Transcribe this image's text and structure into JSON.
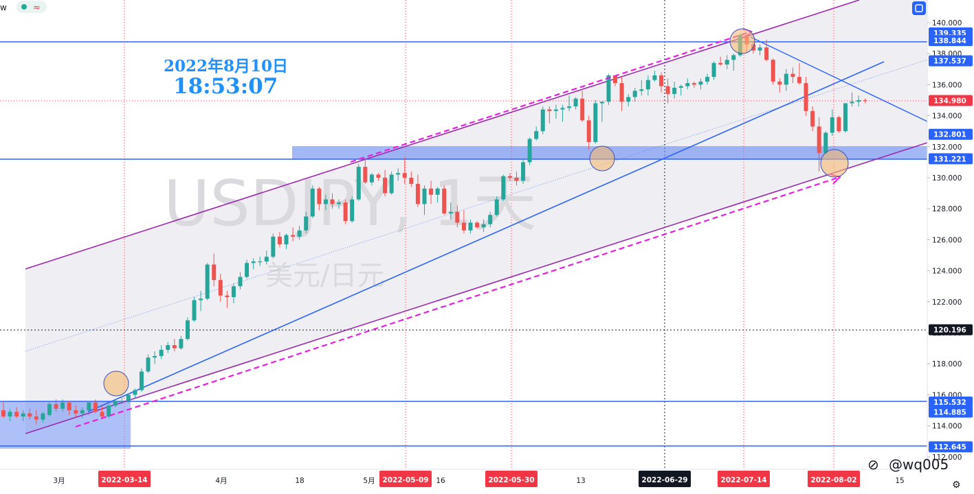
{
  "header": {
    "symbol_fragment": "w",
    "status_icon": "green-dot-icon",
    "indicator_icon": "wave-icon",
    "right_icon": "layout-icon"
  },
  "overlay": {
    "date": "2022年8月10日",
    "time": "18:53:07",
    "watermark_symbol": "USDJPY, 1天",
    "watermark_desc": "美元/日元",
    "weibo_handle": "@wq005"
  },
  "price_axis": {
    "ticks": [
      "140.000",
      "138.000",
      "136.000",
      "134.000",
      "132.000",
      "130.000",
      "128.000",
      "126.000",
      "124.000",
      "122.000",
      "120.000",
      "118.000",
      "116.000",
      "114.000",
      "112.000"
    ],
    "tagged_levels": [
      {
        "value": "139.335",
        "color": "#2962ff"
      },
      {
        "value": "138.844",
        "color": "#2962ff"
      },
      {
        "value": "137.537",
        "color": "#2962ff"
      },
      {
        "value": "134.980",
        "color": "#f23645"
      },
      {
        "value": "132.801",
        "color": "#2962ff"
      },
      {
        "value": "131.221",
        "color": "#2962ff"
      },
      {
        "value": "120.196",
        "color": "#131722"
      },
      {
        "value": "115.532",
        "color": "#2962ff"
      },
      {
        "value": "114.885",
        "color": "#2962ff"
      },
      {
        "value": "112.645",
        "color": "#2962ff"
      }
    ]
  },
  "time_axis": {
    "labels": [
      "3月",
      "4月",
      "18",
      "5月",
      "16",
      "13",
      "15"
    ],
    "tagged_dates": [
      {
        "label": "2022-03-14",
        "color": "#f23645"
      },
      {
        "label": "2022-05-09",
        "color": "#f23645"
      },
      {
        "label": "2022-05-30",
        "color": "#f23645"
      },
      {
        "label": "2022-06-29",
        "color": "#131722"
      },
      {
        "label": "2022-07-14",
        "color": "#f23645"
      },
      {
        "label": "2022-08-02",
        "color": "#f23645"
      }
    ]
  },
  "colors": {
    "up": "#26a69a",
    "down": "#ef5350",
    "level_line": "#2962ff",
    "channel": "#9c27b0",
    "projection": "#e91ee0",
    "zone": "#8fa8f5"
  },
  "chart_data": {
    "type": "candlestick",
    "symbol": "USDJPY",
    "ylim": [
      111.6,
      141.0
    ],
    "candles": [
      {
        "o": 115.0,
        "h": 115.6,
        "l": 114.5,
        "c": 114.6
      },
      {
        "o": 114.6,
        "h": 115.1,
        "l": 114.3,
        "c": 114.9
      },
      {
        "o": 114.9,
        "h": 115.2,
        "l": 114.5,
        "c": 114.6
      },
      {
        "o": 114.6,
        "h": 115.0,
        "l": 114.3,
        "c": 114.8
      },
      {
        "o": 114.8,
        "h": 115.1,
        "l": 114.4,
        "c": 114.6
      },
      {
        "o": 114.6,
        "h": 115.0,
        "l": 114.1,
        "c": 114.4
      },
      {
        "o": 114.4,
        "h": 114.9,
        "l": 114.2,
        "c": 114.8
      },
      {
        "o": 114.7,
        "h": 115.6,
        "l": 114.6,
        "c": 115.4
      },
      {
        "o": 115.4,
        "h": 115.7,
        "l": 114.9,
        "c": 115.1
      },
      {
        "o": 115.1,
        "h": 115.7,
        "l": 114.9,
        "c": 115.5
      },
      {
        "o": 115.5,
        "h": 115.6,
        "l": 114.7,
        "c": 115.0
      },
      {
        "o": 115.0,
        "h": 115.3,
        "l": 114.6,
        "c": 114.8
      },
      {
        "o": 114.8,
        "h": 115.2,
        "l": 114.5,
        "c": 115.0
      },
      {
        "o": 115.0,
        "h": 115.6,
        "l": 114.7,
        "c": 115.5
      },
      {
        "o": 115.5,
        "h": 115.7,
        "l": 114.8,
        "c": 114.9
      },
      {
        "o": 114.9,
        "h": 115.3,
        "l": 114.4,
        "c": 114.6
      },
      {
        "o": 114.6,
        "h": 115.4,
        "l": 114.5,
        "c": 115.3
      },
      {
        "o": 115.3,
        "h": 115.7,
        "l": 115.2,
        "c": 115.6
      },
      {
        "o": 115.6,
        "h": 115.8,
        "l": 115.4,
        "c": 115.6
      },
      {
        "o": 115.6,
        "h": 116.1,
        "l": 115.5,
        "c": 116.0
      },
      {
        "o": 116.0,
        "h": 116.4,
        "l": 115.8,
        "c": 116.3
      },
      {
        "o": 116.3,
        "h": 117.7,
        "l": 116.2,
        "c": 117.5
      },
      {
        "o": 117.5,
        "h": 118.6,
        "l": 117.4,
        "c": 118.4
      },
      {
        "o": 118.4,
        "h": 118.8,
        "l": 118.0,
        "c": 118.5
      },
      {
        "o": 118.5,
        "h": 119.2,
        "l": 118.3,
        "c": 118.9
      },
      {
        "o": 118.9,
        "h": 119.4,
        "l": 118.7,
        "c": 119.2
      },
      {
        "o": 119.2,
        "h": 119.6,
        "l": 118.8,
        "c": 119.0
      },
      {
        "o": 119.0,
        "h": 119.8,
        "l": 118.9,
        "c": 119.6
      },
      {
        "o": 119.6,
        "h": 121.0,
        "l": 119.5,
        "c": 120.8
      },
      {
        "o": 120.8,
        "h": 122.3,
        "l": 120.7,
        "c": 122.1
      },
      {
        "o": 122.1,
        "h": 122.7,
        "l": 121.4,
        "c": 122.2
      },
      {
        "o": 122.2,
        "h": 124.5,
        "l": 122.1,
        "c": 124.4
      },
      {
        "o": 124.4,
        "h": 125.1,
        "l": 123.0,
        "c": 123.4
      },
      {
        "o": 123.4,
        "h": 123.8,
        "l": 122.0,
        "c": 122.4
      },
      {
        "o": 122.4,
        "h": 122.7,
        "l": 121.6,
        "c": 122.3
      },
      {
        "o": 122.3,
        "h": 123.2,
        "l": 121.9,
        "c": 123.0
      },
      {
        "o": 123.0,
        "h": 123.9,
        "l": 122.8,
        "c": 123.6
      },
      {
        "o": 123.6,
        "h": 124.7,
        "l": 123.5,
        "c": 124.5
      },
      {
        "o": 124.5,
        "h": 124.8,
        "l": 124.1,
        "c": 124.6
      },
      {
        "o": 124.6,
        "h": 124.9,
        "l": 124.3,
        "c": 124.6
      },
      {
        "o": 124.6,
        "h": 125.3,
        "l": 124.4,
        "c": 124.9
      },
      {
        "o": 124.9,
        "h": 126.4,
        "l": 124.8,
        "c": 126.2
      },
      {
        "o": 126.2,
        "h": 126.5,
        "l": 125.5,
        "c": 125.7
      },
      {
        "o": 125.7,
        "h": 126.4,
        "l": 125.4,
        "c": 126.3
      },
      {
        "o": 126.3,
        "h": 126.8,
        "l": 125.9,
        "c": 126.2
      },
      {
        "o": 126.2,
        "h": 126.9,
        "l": 126.0,
        "c": 126.6
      },
      {
        "o": 126.6,
        "h": 127.8,
        "l": 126.4,
        "c": 127.5
      },
      {
        "o": 127.5,
        "h": 129.5,
        "l": 127.4,
        "c": 129.3
      },
      {
        "o": 129.3,
        "h": 129.4,
        "l": 127.9,
        "c": 128.3
      },
      {
        "o": 128.3,
        "h": 128.9,
        "l": 127.9,
        "c": 128.6
      },
      {
        "o": 128.6,
        "h": 129.0,
        "l": 128.0,
        "c": 128.3
      },
      {
        "o": 128.3,
        "h": 128.6,
        "l": 128.0,
        "c": 128.4
      },
      {
        "o": 128.4,
        "h": 128.6,
        "l": 127.0,
        "c": 127.2
      },
      {
        "o": 127.2,
        "h": 128.8,
        "l": 127.1,
        "c": 128.6
      },
      {
        "o": 128.6,
        "h": 130.9,
        "l": 128.5,
        "c": 130.7
      },
      {
        "o": 130.7,
        "h": 131.2,
        "l": 129.6,
        "c": 129.7
      },
      {
        "o": 129.7,
        "h": 130.3,
        "l": 129.5,
        "c": 130.2
      },
      {
        "o": 130.2,
        "h": 130.3,
        "l": 129.8,
        "c": 130.0
      },
      {
        "o": 130.0,
        "h": 130.5,
        "l": 128.8,
        "c": 129.0
      },
      {
        "o": 129.0,
        "h": 130.4,
        "l": 128.9,
        "c": 130.2
      },
      {
        "o": 130.2,
        "h": 130.6,
        "l": 129.8,
        "c": 130.3
      },
      {
        "o": 130.3,
        "h": 131.3,
        "l": 129.6,
        "c": 130.0
      },
      {
        "o": 130.0,
        "h": 130.4,
        "l": 129.4,
        "c": 129.6
      },
      {
        "o": 129.6,
        "h": 130.2,
        "l": 128.1,
        "c": 128.3
      },
      {
        "o": 128.3,
        "h": 129.5,
        "l": 127.6,
        "c": 129.3
      },
      {
        "o": 129.3,
        "h": 129.8,
        "l": 128.3,
        "c": 128.9
      },
      {
        "o": 128.9,
        "h": 129.4,
        "l": 128.4,
        "c": 129.3
      },
      {
        "o": 129.3,
        "h": 129.5,
        "l": 127.6,
        "c": 127.7
      },
      {
        "o": 127.7,
        "h": 128.4,
        "l": 127.3,
        "c": 127.8
      },
      {
        "o": 127.8,
        "h": 128.2,
        "l": 126.8,
        "c": 127.1
      },
      {
        "o": 127.1,
        "h": 127.9,
        "l": 126.4,
        "c": 126.6
      },
      {
        "o": 126.6,
        "h": 127.3,
        "l": 126.4,
        "c": 127.1
      },
      {
        "o": 127.1,
        "h": 127.2,
        "l": 126.7,
        "c": 126.8
      },
      {
        "o": 126.8,
        "h": 127.3,
        "l": 126.5,
        "c": 127.0
      },
      {
        "o": 127.0,
        "h": 127.8,
        "l": 126.8,
        "c": 127.6
      },
      {
        "o": 127.6,
        "h": 128.8,
        "l": 127.5,
        "c": 128.6
      },
      {
        "o": 128.6,
        "h": 130.2,
        "l": 128.5,
        "c": 130.1
      },
      {
        "o": 130.1,
        "h": 130.3,
        "l": 129.8,
        "c": 130.0
      },
      {
        "o": 130.0,
        "h": 130.4,
        "l": 129.5,
        "c": 129.8
      },
      {
        "o": 129.8,
        "h": 131.2,
        "l": 129.6,
        "c": 131.0
      },
      {
        "o": 131.0,
        "h": 132.6,
        "l": 130.8,
        "c": 132.5
      },
      {
        "o": 132.5,
        "h": 133.3,
        "l": 132.4,
        "c": 133.0
      },
      {
        "o": 133.0,
        "h": 134.6,
        "l": 132.8,
        "c": 134.4
      },
      {
        "o": 134.4,
        "h": 134.6,
        "l": 133.5,
        "c": 134.3
      },
      {
        "o": 134.3,
        "h": 134.7,
        "l": 133.8,
        "c": 134.4
      },
      {
        "o": 134.4,
        "h": 134.7,
        "l": 133.6,
        "c": 134.5
      },
      {
        "o": 134.5,
        "h": 135.3,
        "l": 134.3,
        "c": 134.6
      },
      {
        "o": 134.6,
        "h": 135.2,
        "l": 134.4,
        "c": 135.1
      },
      {
        "o": 135.1,
        "h": 135.6,
        "l": 133.6,
        "c": 133.7
      },
      {
        "o": 133.7,
        "h": 134.0,
        "l": 131.8,
        "c": 132.3
      },
      {
        "o": 132.3,
        "h": 135.0,
        "l": 132.2,
        "c": 134.8
      },
      {
        "o": 134.8,
        "h": 134.9,
        "l": 133.6,
        "c": 134.9
      },
      {
        "o": 134.9,
        "h": 136.7,
        "l": 134.7,
        "c": 136.6
      },
      {
        "o": 136.6,
        "h": 136.6,
        "l": 135.9,
        "c": 136.1
      },
      {
        "o": 136.1,
        "h": 136.5,
        "l": 134.3,
        "c": 134.9
      },
      {
        "o": 134.9,
        "h": 135.4,
        "l": 134.6,
        "c": 135.2
      },
      {
        "o": 135.2,
        "h": 135.8,
        "l": 134.9,
        "c": 135.6
      },
      {
        "o": 135.6,
        "h": 136.3,
        "l": 135.3,
        "c": 135.7
      },
      {
        "o": 135.7,
        "h": 136.6,
        "l": 135.3,
        "c": 136.3
      },
      {
        "o": 136.3,
        "h": 136.9,
        "l": 136.2,
        "c": 136.6
      },
      {
        "o": 136.6,
        "h": 136.8,
        "l": 135.5,
        "c": 135.9
      },
      {
        "o": 135.9,
        "h": 136.4,
        "l": 134.8,
        "c": 135.4
      },
      {
        "o": 135.4,
        "h": 136.2,
        "l": 135.1,
        "c": 135.8
      },
      {
        "o": 135.8,
        "h": 136.0,
        "l": 135.3,
        "c": 135.9
      },
      {
        "o": 135.9,
        "h": 136.4,
        "l": 135.7,
        "c": 136.1
      },
      {
        "o": 136.1,
        "h": 136.2,
        "l": 135.8,
        "c": 136.0
      },
      {
        "o": 136.0,
        "h": 136.4,
        "l": 135.7,
        "c": 136.2
      },
      {
        "o": 136.2,
        "h": 136.7,
        "l": 136.0,
        "c": 136.5
      },
      {
        "o": 136.5,
        "h": 137.5,
        "l": 136.3,
        "c": 137.4
      },
      {
        "o": 137.4,
        "h": 137.8,
        "l": 137.2,
        "c": 137.3
      },
      {
        "o": 137.3,
        "h": 137.9,
        "l": 137.0,
        "c": 137.6
      },
      {
        "o": 137.6,
        "h": 138.0,
        "l": 136.9,
        "c": 137.9
      },
      {
        "o": 137.9,
        "h": 139.3,
        "l": 137.8,
        "c": 139.2
      },
      {
        "o": 139.2,
        "h": 139.3,
        "l": 138.1,
        "c": 138.6
      },
      {
        "o": 138.6,
        "h": 138.8,
        "l": 138.0,
        "c": 138.2
      },
      {
        "o": 138.2,
        "h": 138.6,
        "l": 137.9,
        "c": 138.4
      },
      {
        "o": 138.4,
        "h": 138.9,
        "l": 137.5,
        "c": 137.6
      },
      {
        "o": 137.6,
        "h": 137.7,
        "l": 136.0,
        "c": 136.2
      },
      {
        "o": 136.2,
        "h": 136.4,
        "l": 135.5,
        "c": 136.0
      },
      {
        "o": 136.0,
        "h": 137.0,
        "l": 135.6,
        "c": 136.7
      },
      {
        "o": 136.7,
        "h": 137.1,
        "l": 136.1,
        "c": 136.5
      },
      {
        "o": 136.5,
        "h": 137.4,
        "l": 136.0,
        "c": 136.1
      },
      {
        "o": 136.1,
        "h": 136.5,
        "l": 134.0,
        "c": 134.3
      },
      {
        "o": 134.3,
        "h": 134.6,
        "l": 133.0,
        "c": 133.3
      },
      {
        "o": 133.3,
        "h": 133.9,
        "l": 130.4,
        "c": 131.6
      },
      {
        "o": 131.6,
        "h": 133.0,
        "l": 131.5,
        "c": 132.9
      },
      {
        "o": 132.9,
        "h": 134.4,
        "l": 132.7,
        "c": 133.9
      },
      {
        "o": 133.9,
        "h": 134.0,
        "l": 132.9,
        "c": 133.0
      },
      {
        "o": 133.0,
        "h": 134.8,
        "l": 132.9,
        "c": 134.8
      },
      {
        "o": 134.8,
        "h": 135.5,
        "l": 134.6,
        "c": 134.9
      },
      {
        "o": 134.9,
        "h": 135.3,
        "l": 134.6,
        "c": 135.0
      },
      {
        "o": 135.0,
        "h": 135.1,
        "l": 134.8,
        "c": 134.98
      }
    ]
  }
}
